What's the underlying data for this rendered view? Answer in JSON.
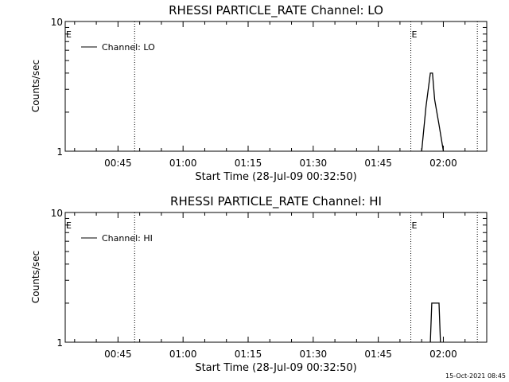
{
  "footer": {
    "timestamp": "15-Oct-2021 08:45"
  },
  "chart_data": [
    {
      "type": "line",
      "title": "RHESSI PARTICLE_RATE Channel: LO",
      "xlabel": "Start Time (28-Jul-09 00:32:50)",
      "ylabel": "Counts/sec",
      "y_scale": "log",
      "ylim": [
        1,
        10
      ],
      "xlim": [
        "00:32:50",
        "02:10:00"
      ],
      "x_tick_labels": [
        "00:45",
        "01:00",
        "01:15",
        "01:30",
        "01:45",
        "02:00"
      ],
      "y_tick_labels": [
        "1",
        "10"
      ],
      "legend": {
        "placement": "top-left",
        "entries": [
          "Channel: LO"
        ]
      },
      "event_markers": [
        {
          "label": "E",
          "time": "00:32:50"
        },
        {
          "label": "E",
          "time": "01:52:30"
        }
      ],
      "vertical_dotted_lines": [
        "00:48:50",
        "01:52:30",
        "02:07:50"
      ],
      "series": [
        {
          "name": "Channel: LO",
          "x": [
            "01:55:00",
            "01:56:00",
            "01:57:00",
            "01:57:30",
            "01:58:00",
            "01:59:00",
            "02:00:00"
          ],
          "y": [
            1,
            2.2,
            4.0,
            4.0,
            2.5,
            1.6,
            1
          ]
        }
      ]
    },
    {
      "type": "line",
      "title": "RHESSI PARTICLE_RATE Channel: HI",
      "xlabel": "Start Time (28-Jul-09 00:32:50)",
      "ylabel": "Counts/sec",
      "y_scale": "log",
      "ylim": [
        1,
        10
      ],
      "xlim": [
        "00:32:50",
        "02:10:00"
      ],
      "x_tick_labels": [
        "00:45",
        "01:00",
        "01:15",
        "01:30",
        "01:45",
        "02:00"
      ],
      "y_tick_labels": [
        "1",
        "10"
      ],
      "legend": {
        "placement": "top-left",
        "entries": [
          "Channel: HI"
        ]
      },
      "event_markers": [
        {
          "label": "E",
          "time": "00:32:50"
        },
        {
          "label": "E",
          "time": "01:52:30"
        }
      ],
      "vertical_dotted_lines": [
        "00:48:50",
        "01:52:30",
        "02:07:50"
      ],
      "series": [
        {
          "name": "Channel: HI",
          "x": [
            "01:57:00",
            "01:57:20",
            "01:59:00",
            "01:59:20"
          ],
          "y": [
            1,
            2,
            2,
            1
          ]
        }
      ]
    }
  ]
}
